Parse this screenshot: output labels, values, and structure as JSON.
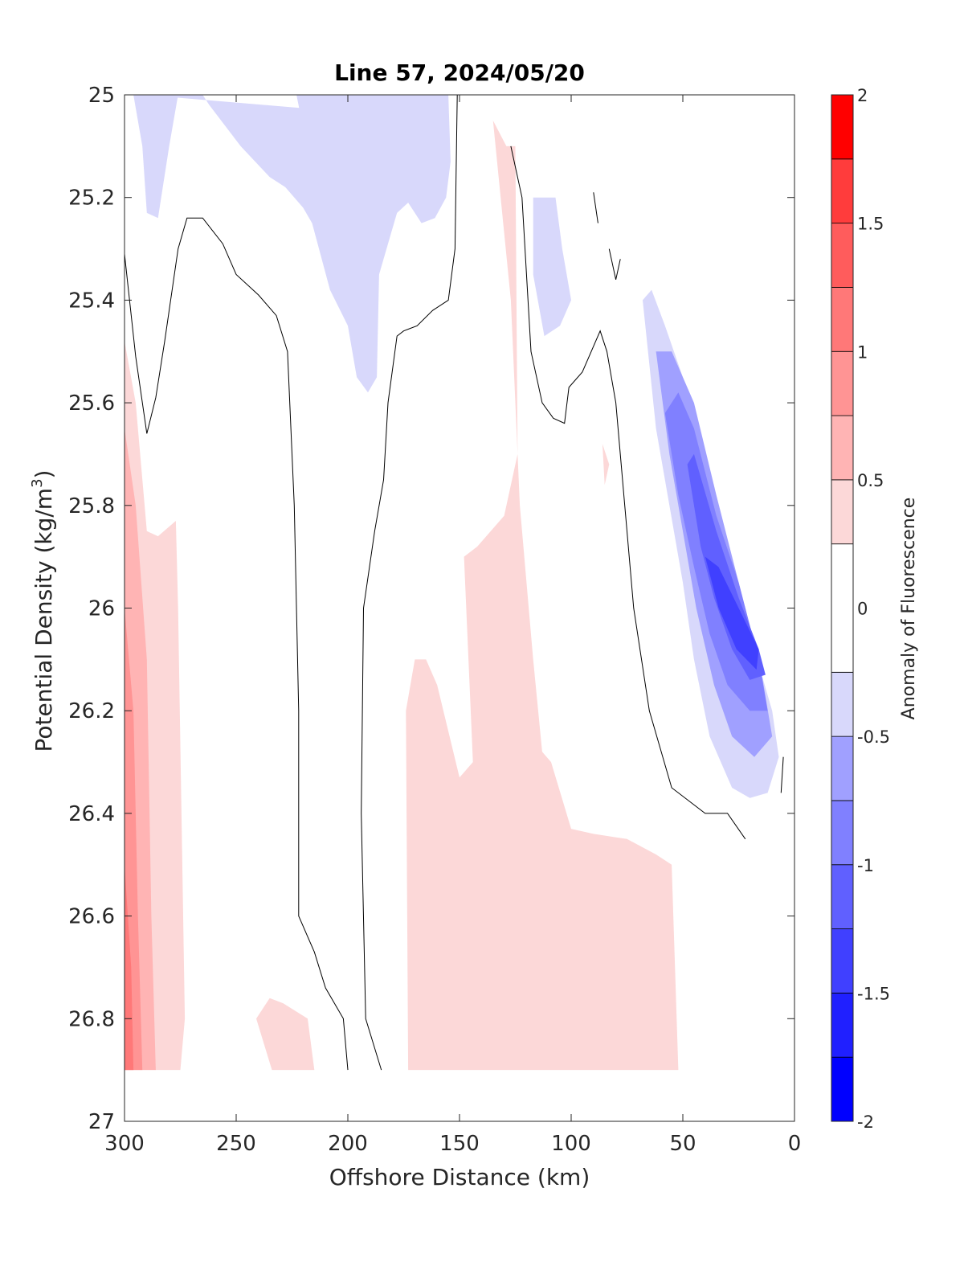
{
  "chart_data": {
    "type": "contour",
    "title": "Line 57, 2024/05/20",
    "xlabel": "Offshore Distance (km)",
    "ylabel_main": "Potential Density (kg/m",
    "ylabel_sup": "3",
    "ylabel_end": ")",
    "xlim": [
      300,
      0
    ],
    "x_direction": "reversed",
    "ylim": [
      25,
      27
    ],
    "y_direction": "reversed (density increases downward)",
    "x_ticks": [
      300,
      250,
      200,
      150,
      100,
      50,
      0
    ],
    "x_tick_labels": [
      "300",
      "250",
      "200",
      "150",
      "100",
      "50",
      "0"
    ],
    "y_ticks": [
      25,
      25.2,
      25.4,
      25.6,
      25.8,
      26,
      26.2,
      26.4,
      26.6,
      26.8,
      27
    ],
    "y_tick_labels": [
      "25",
      "25.2",
      "25.4",
      "25.6",
      "25.8",
      "26",
      "26.2",
      "26.4",
      "26.6",
      "26.8",
      "27"
    ],
    "colorbar": {
      "label": "Anomaly of Fluorescence",
      "range": [
        -2,
        2
      ],
      "ticks": [
        -2,
        -1.5,
        -1,
        -0.5,
        0,
        0.5,
        1,
        1.5,
        2
      ],
      "tick_labels": [
        "-2",
        "-1.5",
        "-1",
        "-0.5",
        "0",
        "0.5",
        "1",
        "1.5",
        "2"
      ],
      "levels": [
        {
          "from": -2.0,
          "to": -1.75,
          "color": "#0000ff"
        },
        {
          "from": -1.75,
          "to": -1.5,
          "color": "#2020ff"
        },
        {
          "from": -1.5,
          "to": -1.25,
          "color": "#4040ff"
        },
        {
          "from": -1.25,
          "to": -1.0,
          "color": "#6060ff"
        },
        {
          "from": -1.0,
          "to": -0.75,
          "color": "#8080ff"
        },
        {
          "from": -0.75,
          "to": -0.5,
          "color": "#a0a0ff"
        },
        {
          "from": -0.5,
          "to": -0.25,
          "color": "#d8d8fb"
        },
        {
          "from": -0.25,
          "to": 0.25,
          "color": "#ffffff"
        },
        {
          "from": 0.25,
          "to": 0.5,
          "color": "#fcd8d8"
        },
        {
          "from": 0.5,
          "to": 0.75,
          "color": "#ffb4b4"
        },
        {
          "from": 0.75,
          "to": 1.0,
          "color": "#ff9494"
        },
        {
          "from": 1.0,
          "to": 1.25,
          "color": "#ff7878"
        },
        {
          "from": 1.25,
          "to": 1.5,
          "color": "#ff5c5c"
        },
        {
          "from": 1.5,
          "to": 1.75,
          "color": "#ff3c3c"
        },
        {
          "from": 1.75,
          "to": 2.0,
          "color": "#ff0000"
        }
      ]
    },
    "filled_regions": [
      {
        "name": "neg-top-left",
        "level": -0.25,
        "color": "#d8d8fb",
        "points": [
          [
            291,
            25
          ],
          [
            265,
            25
          ],
          [
            262,
            25.02
          ],
          [
            248,
            25.1
          ],
          [
            235,
            25.16
          ],
          [
            228,
            25.18
          ],
          [
            220,
            25.22
          ],
          [
            216,
            25.25
          ],
          [
            208,
            25.38
          ],
          [
            200,
            25.45
          ],
          [
            196,
            25.55
          ],
          [
            191,
            25.58
          ],
          [
            187,
            25.55
          ],
          [
            186,
            25.35
          ],
          [
            182,
            25.29
          ],
          [
            178,
            25.23
          ],
          [
            173,
            25.21
          ],
          [
            167,
            25.25
          ],
          [
            161,
            25.24
          ],
          [
            156,
            25.2
          ],
          [
            154,
            25.13
          ],
          [
            155,
            25
          ],
          [
            223,
            25
          ],
          [
            218,
            25.11
          ],
          [
            206,
            25.2
          ],
          [
            193,
            25.18
          ],
          [
            173,
            25.15
          ],
          [
            155,
            25.05
          ]
        ]
      },
      {
        "name": "neg-top-left-2",
        "level": -0.25,
        "color": "#d8d8fb",
        "points": [
          [
            296,
            25
          ],
          [
            276,
            25
          ],
          [
            280,
            25.1
          ],
          [
            285,
            25.24
          ],
          [
            290,
            25.23
          ],
          [
            292,
            25.1
          ]
        ]
      },
      {
        "name": "neg-mid-100",
        "level": -0.25,
        "color": "#d8d8fb",
        "points": [
          [
            117,
            25.2
          ],
          [
            107,
            25.2
          ],
          [
            104,
            25.3
          ],
          [
            100,
            25.4
          ],
          [
            105,
            25.45
          ],
          [
            112,
            25.47
          ],
          [
            117,
            25.35
          ]
        ]
      },
      {
        "name": "neg-coastal-outer",
        "level": -0.25,
        "color": "#d8d8fb",
        "points": [
          [
            68,
            25.4
          ],
          [
            62,
            25.65
          ],
          [
            56,
            25.8
          ],
          [
            50,
            25.95
          ],
          [
            45,
            26.1
          ],
          [
            38,
            26.25
          ],
          [
            28,
            26.35
          ],
          [
            20,
            26.37
          ],
          [
            12,
            26.36
          ],
          [
            7,
            26.29
          ],
          [
            10,
            26.2
          ],
          [
            20,
            26.05
          ],
          [
            30,
            25.9
          ],
          [
            40,
            25.75
          ],
          [
            50,
            25.55
          ],
          [
            58,
            25.45
          ],
          [
            64,
            25.38
          ]
        ]
      },
      {
        "name": "neg-coastal-2",
        "level": -0.5,
        "color": "#a0a0ff",
        "points": [
          [
            62,
            25.5
          ],
          [
            56,
            25.7
          ],
          [
            50,
            25.85
          ],
          [
            44,
            26.0
          ],
          [
            36,
            26.15
          ],
          [
            28,
            26.25
          ],
          [
            18,
            26.29
          ],
          [
            10,
            26.25
          ],
          [
            15,
            26.12
          ],
          [
            25,
            25.95
          ],
          [
            35,
            25.78
          ],
          [
            45,
            25.6
          ],
          [
            55,
            25.5
          ]
        ]
      },
      {
        "name": "neg-coastal-3",
        "level": -0.75,
        "color": "#8080ff",
        "points": [
          [
            58,
            25.62
          ],
          [
            52,
            25.78
          ],
          [
            45,
            25.92
          ],
          [
            38,
            26.05
          ],
          [
            30,
            26.15
          ],
          [
            20,
            26.2
          ],
          [
            12,
            26.2
          ],
          [
            16,
            26.1
          ],
          [
            25,
            25.95
          ],
          [
            35,
            25.82
          ],
          [
            45,
            25.65
          ],
          [
            52,
            25.58
          ]
        ]
      },
      {
        "name": "neg-coastal-4",
        "level": -1.0,
        "color": "#6060ff",
        "points": [
          [
            48,
            25.72
          ],
          [
            42,
            25.88
          ],
          [
            36,
            25.98
          ],
          [
            28,
            26.08
          ],
          [
            20,
            26.14
          ],
          [
            13,
            26.13
          ],
          [
            16,
            26.08
          ],
          [
            25,
            25.98
          ],
          [
            35,
            25.85
          ],
          [
            45,
            25.7
          ]
        ]
      },
      {
        "name": "neg-coastal-5",
        "level": -1.25,
        "color": "#4040ff",
        "points": [
          [
            40,
            25.9
          ],
          [
            34,
            26.0
          ],
          [
            26,
            26.08
          ],
          [
            17,
            26.12
          ],
          [
            16,
            26.08
          ],
          [
            25,
            26.0
          ],
          [
            34,
            25.92
          ]
        ]
      },
      {
        "name": "pos-left-edge",
        "level": 0.25,
        "color": "#fcd8d8",
        "points": [
          [
            300,
            25.48
          ],
          [
            295,
            25.6
          ],
          [
            290,
            25.85
          ],
          [
            285,
            25.86
          ],
          [
            277,
            25.83
          ],
          [
            276,
            26.0
          ],
          [
            273,
            26.8
          ],
          [
            275,
            26.9
          ],
          [
            300,
            26.9
          ]
        ]
      },
      {
        "name": "pos-left-edge-2",
        "level": 0.5,
        "color": "#ffb4b4",
        "points": [
          [
            300,
            25.65
          ],
          [
            295,
            25.8
          ],
          [
            290,
            26.1
          ],
          [
            288,
            26.6
          ],
          [
            286,
            26.9
          ],
          [
            300,
            26.9
          ]
        ]
      },
      {
        "name": "pos-left-edge-3",
        "level": 0.75,
        "color": "#ff9494",
        "points": [
          [
            300,
            26.0
          ],
          [
            296,
            26.2
          ],
          [
            294,
            26.6
          ],
          [
            292,
            26.9
          ],
          [
            300,
            26.9
          ]
        ]
      },
      {
        "name": "pos-left-edge-4",
        "level": 1.0,
        "color": "#ff7878",
        "points": [
          [
            300,
            26.5
          ],
          [
            297,
            26.7
          ],
          [
            296,
            26.9
          ],
          [
            300,
            26.9
          ]
        ]
      },
      {
        "name": "pos-central",
        "level": 0.25,
        "color": "#fcd8d8",
        "points": [
          [
            135,
            25.05
          ],
          [
            129,
            25.1
          ],
          [
            125,
            25.1
          ],
          [
            124,
            25.7
          ],
          [
            130,
            25.82
          ],
          [
            142,
            25.88
          ],
          [
            148,
            25.9
          ],
          [
            144,
            26.3
          ],
          [
            150,
            26.33
          ],
          [
            160,
            26.15
          ],
          [
            165,
            26.1
          ],
          [
            170,
            26.1
          ],
          [
            174,
            26.2
          ],
          [
            173,
            26.9
          ],
          [
            52,
            26.9
          ],
          [
            55,
            26.5
          ],
          [
            62,
            26.48
          ],
          [
            75,
            26.45
          ],
          [
            90,
            26.44
          ],
          [
            100,
            26.43
          ],
          [
            109,
            26.3
          ],
          [
            113,
            26.28
          ],
          [
            117,
            26.1
          ],
          [
            123,
            25.8
          ],
          [
            127,
            25.4
          ]
        ]
      },
      {
        "name": "pos-small-230",
        "level": 0.25,
        "color": "#fcd8d8",
        "points": [
          [
            241,
            26.8
          ],
          [
            235,
            26.76
          ],
          [
            229,
            26.77
          ],
          [
            218,
            26.8
          ],
          [
            215,
            26.9
          ],
          [
            234,
            26.9
          ]
        ]
      },
      {
        "name": "pos-small-85",
        "level": 0.25,
        "color": "#fcd8d8",
        "points": [
          [
            86,
            25.68
          ],
          [
            83,
            25.72
          ],
          [
            85,
            25.76
          ]
        ]
      }
    ],
    "zero_contours": [
      {
        "name": "zero-contour-1",
        "points": [
          [
            300,
            25.31
          ],
          [
            295,
            25.51
          ],
          [
            290,
            25.66
          ],
          [
            286,
            25.59
          ],
          [
            282,
            25.48
          ],
          [
            276,
            25.3
          ],
          [
            272,
            25.24
          ],
          [
            265,
            25.24
          ],
          [
            256,
            25.29
          ],
          [
            250,
            25.35
          ],
          [
            240,
            25.39
          ],
          [
            232,
            25.43
          ],
          [
            227,
            25.5
          ],
          [
            224,
            25.8
          ],
          [
            222,
            26.2
          ],
          [
            222,
            26.6
          ],
          [
            215,
            26.67
          ],
          [
            210,
            26.74
          ],
          [
            202,
            26.8
          ],
          [
            200,
            26.9
          ]
        ]
      },
      {
        "name": "zero-contour-2",
        "points": [
          [
            185,
            26.9
          ],
          [
            192,
            26.8
          ],
          [
            194,
            26.4
          ],
          [
            193,
            26.0
          ],
          [
            188,
            25.85
          ],
          [
            184,
            25.75
          ],
          [
            182,
            25.6
          ],
          [
            178,
            25.47
          ],
          [
            175,
            25.46
          ],
          [
            169,
            25.45
          ],
          [
            162,
            25.42
          ],
          [
            155,
            25.4
          ],
          [
            152,
            25.3
          ],
          [
            151,
            25.0
          ]
        ]
      },
      {
        "name": "zero-contour-3",
        "points": [
          [
            127,
            25.1
          ],
          [
            122,
            25.2
          ],
          [
            118,
            25.5
          ],
          [
            113,
            25.6
          ],
          [
            108,
            25.63
          ],
          [
            103,
            25.64
          ],
          [
            101,
            25.57
          ],
          [
            95,
            25.54
          ],
          [
            87,
            25.46
          ],
          [
            84,
            25.5
          ],
          [
            80,
            25.6
          ],
          [
            76,
            25.8
          ],
          [
            72,
            26.0
          ],
          [
            65,
            26.2
          ],
          [
            55,
            26.35
          ],
          [
            40,
            26.4
          ],
          [
            30,
            26.4
          ],
          [
            22,
            26.45
          ]
        ]
      },
      {
        "name": "zero-contour-4",
        "points": [
          [
            90,
            25.19
          ],
          [
            88,
            25.25
          ]
        ]
      },
      {
        "name": "zero-contour-5",
        "points": [
          [
            83,
            25.3
          ],
          [
            80,
            25.36
          ],
          [
            78,
            25.32
          ]
        ]
      },
      {
        "name": "zero-contour-6",
        "points": [
          [
            5,
            26.29
          ],
          [
            6,
            26.36
          ]
        ]
      }
    ]
  }
}
